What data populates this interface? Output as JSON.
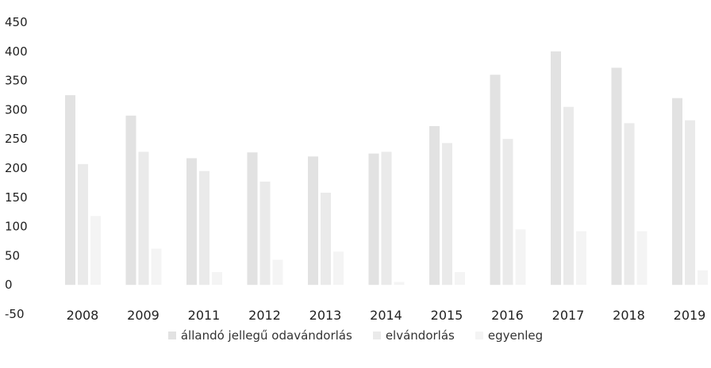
{
  "chart_data": {
    "type": "bar",
    "categories": [
      "2008",
      "2009",
      "2011",
      "2012",
      "2013",
      "2014",
      "2015",
      "2016",
      "2017",
      "2018",
      "2019"
    ],
    "series": [
      {
        "name": "állandó jellegű odavándorlás",
        "color": "#e2e2e2",
        "values": [
          325,
          290,
          217,
          227,
          220,
          225,
          272,
          360,
          400,
          372,
          320
        ]
      },
      {
        "name": "elvándorlás",
        "color": "#eaeaea",
        "values": [
          207,
          228,
          195,
          177,
          158,
          228,
          243,
          250,
          305,
          277,
          282
        ]
      },
      {
        "name": "egyenleg",
        "color": "#f4f4f4",
        "values": [
          118,
          62,
          22,
          43,
          57,
          5,
          22,
          95,
          92,
          92,
          25
        ]
      }
    ],
    "yticks": [
      "-50",
      "0",
      "50",
      "100",
      "150",
      "200",
      "250",
      "300",
      "350",
      "400",
      "450"
    ],
    "ylim": [
      -50,
      450
    ],
    "title": "",
    "xlabel": "",
    "ylabel": "",
    "legend_position": "bottom",
    "grid": false
  }
}
